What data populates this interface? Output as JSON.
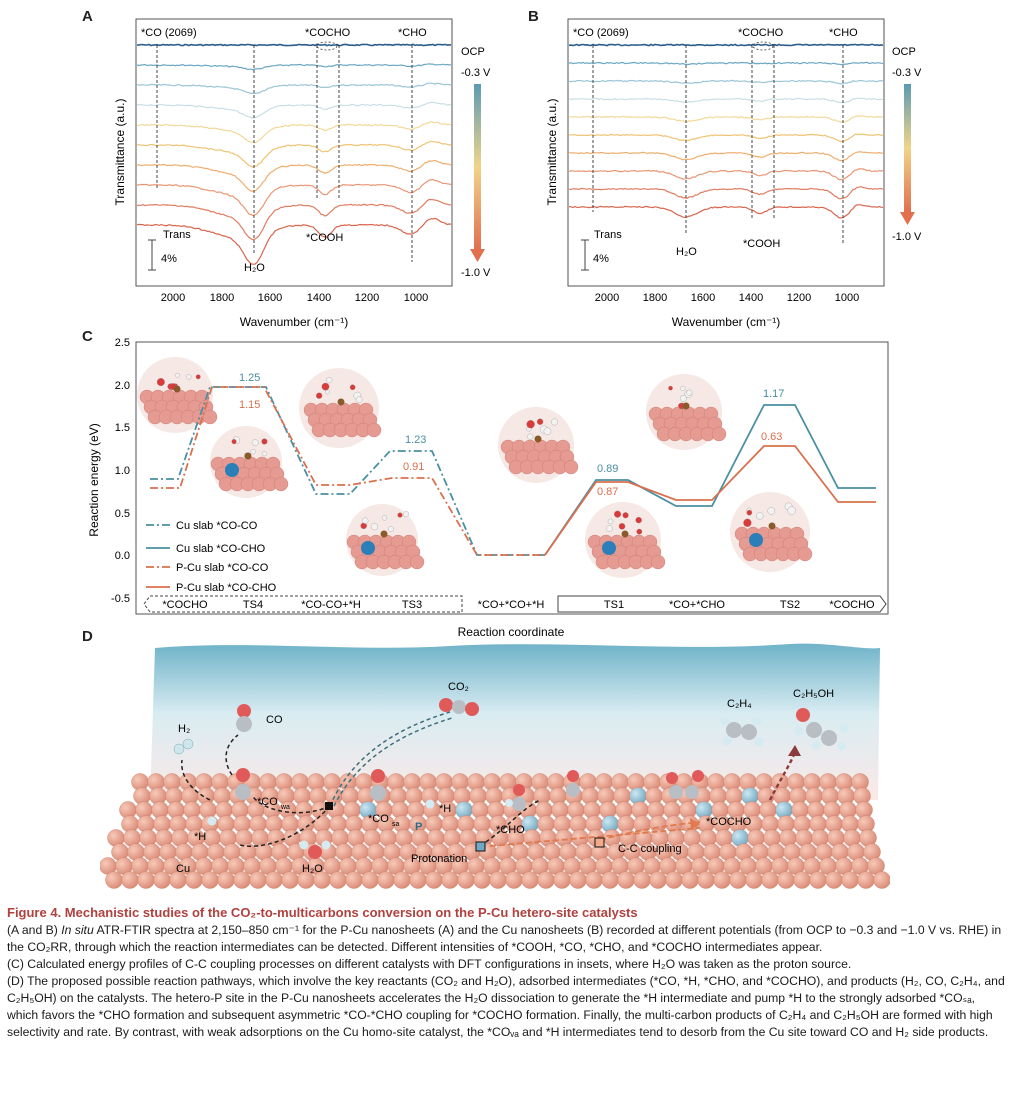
{
  "panels": {
    "a": {
      "letter": "A",
      "ylabel": "Transmittance (a.u.)",
      "xlabel": "Wavenumber (cm⁻¹)",
      "xticks": [
        "2000",
        "1800",
        "1600",
        "1400",
        "1200",
        "1000"
      ],
      "peaks": {
        "co": "*CO (2069)",
        "cocho": "*COCHO",
        "cho": "*CHO",
        "h2o": "H₂O",
        "cooh": "*COOH"
      },
      "scale": {
        "label": "Trans",
        "value": "4%"
      },
      "potential": {
        "ocp": "OCP",
        "start": "-0.3 V",
        "end": "-1.0 V"
      }
    },
    "b": {
      "letter": "B",
      "ylabel": "Transmittance (a.u.)",
      "xlabel": "Wavenumber (cm⁻¹)",
      "xticks": [
        "2000",
        "1800",
        "1600",
        "1400",
        "1200",
        "1000"
      ],
      "peaks": {
        "co": "*CO (2069)",
        "cocho": "*COCHO",
        "cho": "*CHO",
        "h2o": "H₂O",
        "cooh": "*COOH"
      },
      "scale": {
        "label": "Trans",
        "value": "4%"
      },
      "potential": {
        "ocp": "OCP",
        "start": "-0.3 V",
        "end": "-1.0 V"
      }
    },
    "c": {
      "letter": "C",
      "ylabel": "Reaction energy (eV)",
      "xlabel": "Reaction coordinate",
      "yticks": [
        "2.5",
        "2.0",
        "1.5",
        "1.0",
        "0.5",
        "0.0",
        "-0.5"
      ],
      "values": {
        "ts4_blue": "1.25",
        "ts4_orange": "1.15",
        "ts3_blue": "1.23",
        "ts3_orange": "0.91",
        "ts1_blue": "0.89",
        "ts1_orange": "0.87",
        "ts2_blue": "1.17",
        "ts2_orange": "0.63"
      },
      "legend": [
        "Cu slab  *CO-CO",
        "Cu slab *CO-CHO",
        "P-Cu slab *CO-CO",
        "P-Cu slab *CO-CHO"
      ],
      "states_left": [
        "*COCHO",
        "TS4",
        "*CO-CO+*H",
        "TS3"
      ],
      "state_middle": "*CO+*CO+*H",
      "states_right": [
        "TS1",
        "*CO+*CHO",
        "TS2",
        "*COCHO"
      ],
      "colors": {
        "blue": "#4a8fa3",
        "orange": "#d9704e"
      }
    },
    "d": {
      "letter": "D",
      "labels": {
        "h2": "H₂",
        "co": "CO",
        "co2": "CO₂",
        "c2h4": "C₂H₄",
        "c2h5oh": "C₂H₅OH",
        "co_wa": "*CO",
        "co_wa_sub": "wa",
        "co_sa": "*CO",
        "co_sa_sub": "sa",
        "h_right": "*H",
        "h_left": "*H",
        "p": "P",
        "cho": "*CHO",
        "cocho": "*COCHO",
        "protonation": "Protonation",
        "cc_coupling": "C-C coupling",
        "cu": "Cu",
        "h2o": "H₂O"
      }
    }
  },
  "caption": {
    "title": "Figure 4.  Mechanistic studies of the CO₂-to-multicarbons conversion on the P-Cu hetero-site catalysts",
    "p1_pre": "(A and B) ",
    "p1_em": "In situ",
    "p1_post": " ATR-FTIR spectra at 2,150–850 cm⁻¹ for the P-Cu nanosheets (A) and the Cu nanosheets (B) recorded at different potentials (from OCP to −0.3 and −1.0 V vs. RHE) in the CO₂RR, through which the reaction intermediates can be detected. Different intensities of *COOH, *CO, *CHO, and *COCHO intermediates appear.",
    "p2": "(C) Calculated energy profiles of C-C coupling processes on different catalysts with DFT configurations in insets, where H₂O was taken as the proton source.",
    "p3": "(D) The proposed possible reaction pathways, which involve the key reactants (CO₂ and H₂O), adsorbed intermediates (*CO, *H, *CHO, and *COCHO), and products (H₂, CO, C₂H₄, and C₂H₅OH) on the catalysts. The hetero-P site in the P-Cu nanosheets accelerates the H₂O dissociation to generate the *H intermediate and pump *H to the strongly adsorbed *COₛₐ, which favors the *CHO formation and subsequent asymmetric *CO-*CHO coupling for *COCHO formation. Finally, the multi-carbon products of C₂H₄ and C₂H₅OH are formed with high selectivity and rate. By contrast, with weak adsorptions on the Cu homo-site catalyst, the *COᵥₐ and *H intermediates tend to desorb from the Cu site toward CO and H₂ side products."
  }
}
